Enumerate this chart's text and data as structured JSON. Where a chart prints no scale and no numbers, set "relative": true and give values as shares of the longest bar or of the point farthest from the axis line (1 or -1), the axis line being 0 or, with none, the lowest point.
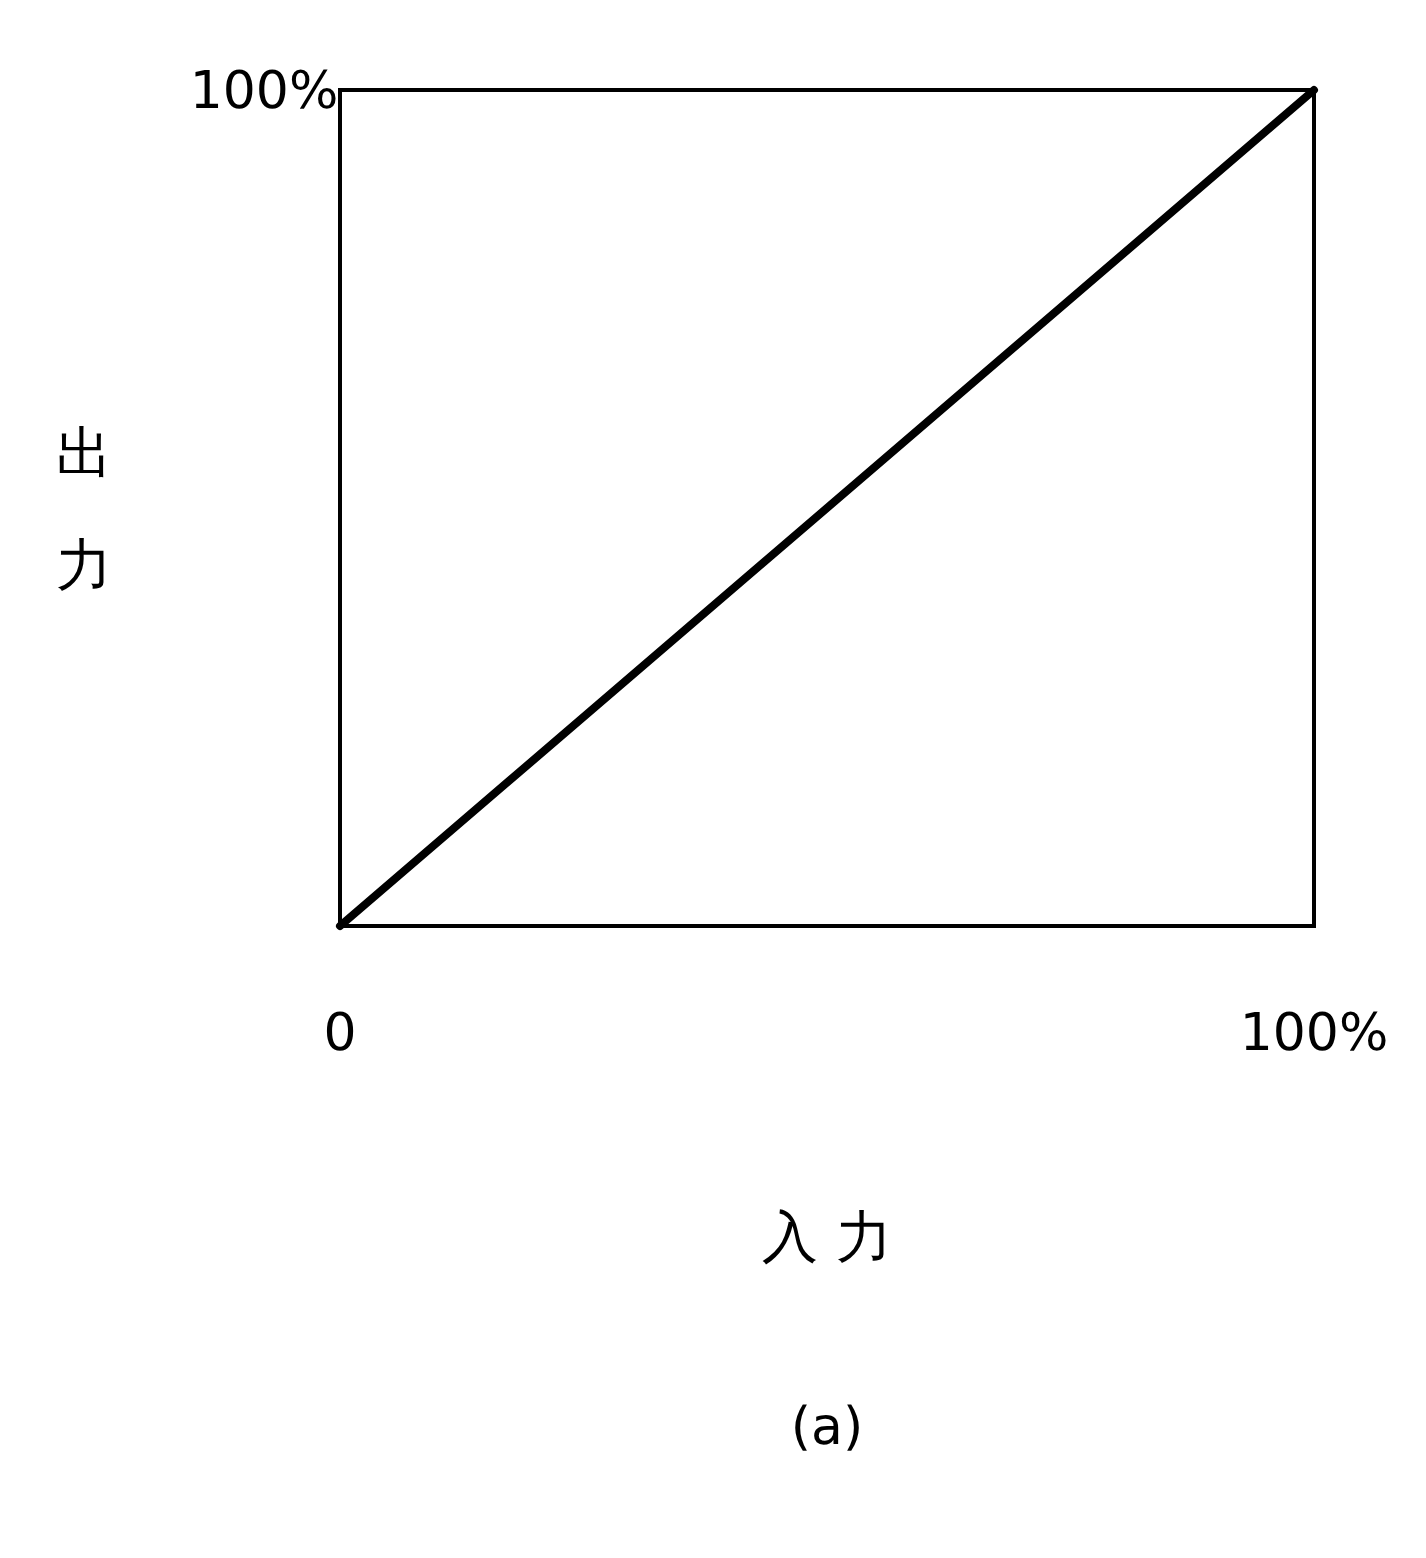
{
  "chart_data": {
    "type": "line",
    "xlabel": "入 力",
    "ylabel": "出力",
    "x": [
      0,
      100
    ],
    "values": [
      0,
      1
    ],
    "color": "#000000",
    "relative": true,
    "xlim": [
      0,
      100
    ],
    "xticks": [
      {
        "value": 0,
        "label": "0"
      },
      {
        "value": 100,
        "label": "100%"
      }
    ],
    "annotations": [
      "100%",
      "(a)"
    ]
  }
}
